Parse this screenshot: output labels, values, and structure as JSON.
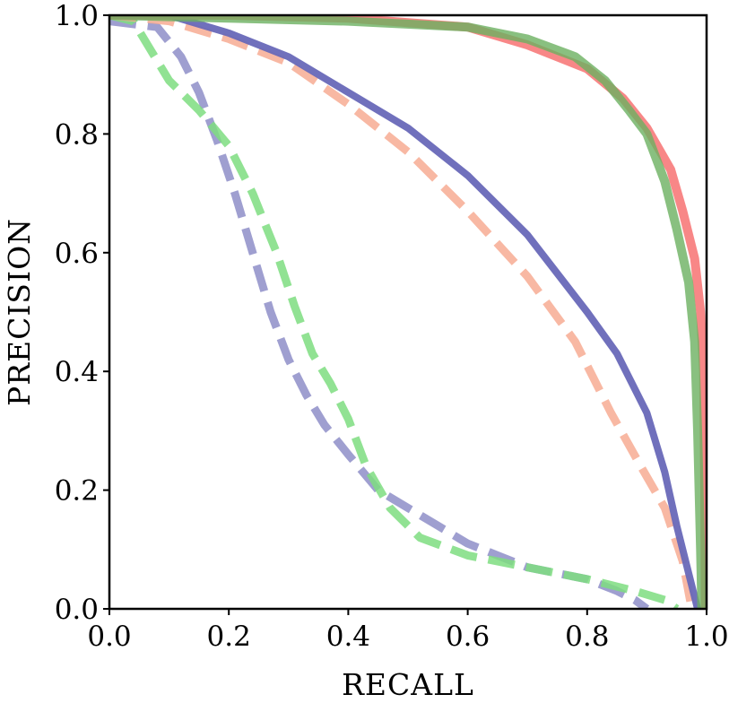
{
  "chart_data": {
    "type": "line",
    "title": "",
    "xlabel": "RECALL",
    "ylabel": "PRECISION",
    "xlim": [
      0.0,
      1.0
    ],
    "ylim": [
      0.0,
      1.0
    ],
    "grid": false,
    "legend": "none",
    "x_ticks": [
      "0.0",
      "0.2",
      "0.4",
      "0.6",
      "0.8",
      "1.0"
    ],
    "y_ticks": [
      "0.0",
      "0.2",
      "0.4",
      "0.6",
      "0.8",
      "1.0"
    ],
    "series": [
      {
        "color": "#8e8ec8",
        "dash": "dashed",
        "width": 9,
        "opacity": 0.85,
        "points": [
          [
            0.0,
            0.99
          ],
          [
            0.08,
            0.98
          ],
          [
            0.12,
            0.93
          ],
          [
            0.15,
            0.87
          ],
          [
            0.18,
            0.79
          ],
          [
            0.21,
            0.7
          ],
          [
            0.24,
            0.6
          ],
          [
            0.27,
            0.5
          ],
          [
            0.3,
            0.42
          ],
          [
            0.33,
            0.36
          ],
          [
            0.36,
            0.31
          ],
          [
            0.4,
            0.26
          ],
          [
            0.45,
            0.2
          ],
          [
            0.5,
            0.17
          ],
          [
            0.55,
            0.14
          ],
          [
            0.6,
            0.11
          ],
          [
            0.65,
            0.09
          ],
          [
            0.7,
            0.07
          ],
          [
            0.75,
            0.06
          ],
          [
            0.8,
            0.05
          ],
          [
            0.85,
            0.03
          ],
          [
            0.88,
            0.015
          ],
          [
            0.9,
            0.0
          ]
        ]
      },
      {
        "color": "#7edd80",
        "dash": "dashed",
        "width": 9,
        "opacity": 0.85,
        "points": [
          [
            0.0,
            1.0
          ],
          [
            0.04,
            0.99
          ],
          [
            0.07,
            0.94
          ],
          [
            0.1,
            0.89
          ],
          [
            0.15,
            0.84
          ],
          [
            0.2,
            0.78
          ],
          [
            0.24,
            0.7
          ],
          [
            0.28,
            0.6
          ],
          [
            0.31,
            0.51
          ],
          [
            0.34,
            0.43
          ],
          [
            0.37,
            0.38
          ],
          [
            0.4,
            0.32
          ],
          [
            0.43,
            0.24
          ],
          [
            0.47,
            0.17
          ],
          [
            0.52,
            0.12
          ],
          [
            0.6,
            0.09
          ],
          [
            0.7,
            0.07
          ],
          [
            0.8,
            0.05
          ],
          [
            0.88,
            0.03
          ],
          [
            0.93,
            0.015
          ],
          [
            0.95,
            0.0
          ]
        ]
      },
      {
        "color": "#f7ac93",
        "dash": "dashed",
        "width": 9,
        "opacity": 0.85,
        "points": [
          [
            0.0,
            1.0
          ],
          [
            0.1,
            0.99
          ],
          [
            0.2,
            0.96
          ],
          [
            0.3,
            0.92
          ],
          [
            0.4,
            0.85
          ],
          [
            0.5,
            0.77
          ],
          [
            0.6,
            0.67
          ],
          [
            0.7,
            0.56
          ],
          [
            0.78,
            0.45
          ],
          [
            0.84,
            0.33
          ],
          [
            0.89,
            0.24
          ],
          [
            0.93,
            0.17
          ],
          [
            0.96,
            0.08
          ],
          [
            0.975,
            0.0
          ]
        ]
      },
      {
        "color": "#6868b8",
        "dash": "solid",
        "width": 8,
        "opacity": 0.95,
        "points": [
          [
            0.0,
            1.0
          ],
          [
            0.1,
            1.0
          ],
          [
            0.2,
            0.97
          ],
          [
            0.3,
            0.93
          ],
          [
            0.4,
            0.87
          ],
          [
            0.5,
            0.81
          ],
          [
            0.6,
            0.73
          ],
          [
            0.7,
            0.63
          ],
          [
            0.8,
            0.5
          ],
          [
            0.85,
            0.43
          ],
          [
            0.9,
            0.33
          ],
          [
            0.93,
            0.23
          ],
          [
            0.95,
            0.14
          ],
          [
            0.97,
            0.06
          ],
          [
            0.985,
            0.0
          ]
        ]
      },
      {
        "color": "#f77a7a",
        "dash": "solid",
        "width": 10,
        "opacity": 0.9,
        "points": [
          [
            0.0,
            1.0
          ],
          [
            0.2,
            1.0
          ],
          [
            0.4,
            0.995
          ],
          [
            0.6,
            0.98
          ],
          [
            0.7,
            0.95
          ],
          [
            0.8,
            0.91
          ],
          [
            0.86,
            0.86
          ],
          [
            0.9,
            0.81
          ],
          [
            0.94,
            0.74
          ],
          [
            0.96,
            0.67
          ],
          [
            0.98,
            0.59
          ],
          [
            0.99,
            0.5
          ],
          [
            0.995,
            0.4
          ],
          [
            0.997,
            0.2
          ],
          [
            0.998,
            0.0
          ]
        ]
      },
      {
        "color": "#6cb060",
        "dash": "solid",
        "width": 10,
        "opacity": 0.8,
        "points": [
          [
            0.0,
            1.0
          ],
          [
            0.2,
            0.995
          ],
          [
            0.4,
            0.99
          ],
          [
            0.6,
            0.98
          ],
          [
            0.7,
            0.96
          ],
          [
            0.78,
            0.93
          ],
          [
            0.83,
            0.89
          ],
          [
            0.87,
            0.84
          ],
          [
            0.9,
            0.8
          ],
          [
            0.93,
            0.72
          ],
          [
            0.95,
            0.64
          ],
          [
            0.97,
            0.55
          ],
          [
            0.98,
            0.45
          ],
          [
            0.985,
            0.3
          ],
          [
            0.99,
            0.1
          ],
          [
            0.992,
            0.0
          ]
        ]
      }
    ]
  }
}
